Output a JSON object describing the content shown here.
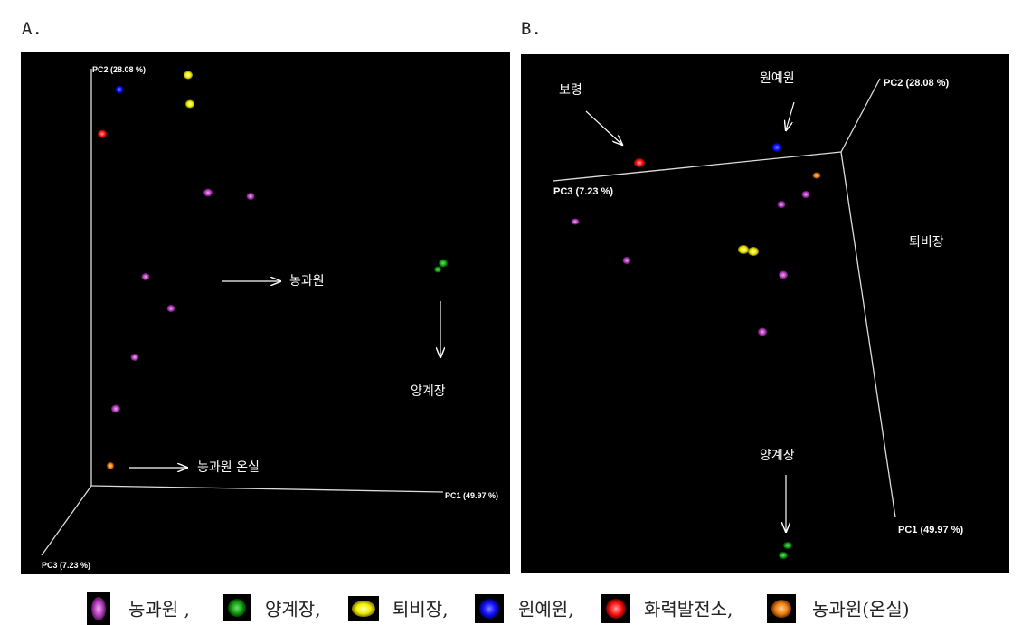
{
  "panels": [
    {
      "label": "A.",
      "axes": {
        "pc1": "PC1 (49.97 %)",
        "pc2": "PC2 (28.08 %)",
        "pc3": "PC3 (7.23 %)"
      },
      "annotations": [
        "농과원",
        "양계장",
        "농과원 온실"
      ]
    },
    {
      "label": "B.",
      "axes": {
        "pc1": "PC1 (49.97 %)",
        "pc2": "PC2 (28.08 %)",
        "pc3": "PC3 (7.23 %)"
      },
      "annotations": [
        "보령",
        "원예원",
        "퇴비장",
        "양계장"
      ]
    }
  ],
  "legend": [
    "농과원 ,",
    "양계장,",
    "퇴비장,",
    "원예원,",
    "화력발전소,",
    "농과원(온실)"
  ]
}
